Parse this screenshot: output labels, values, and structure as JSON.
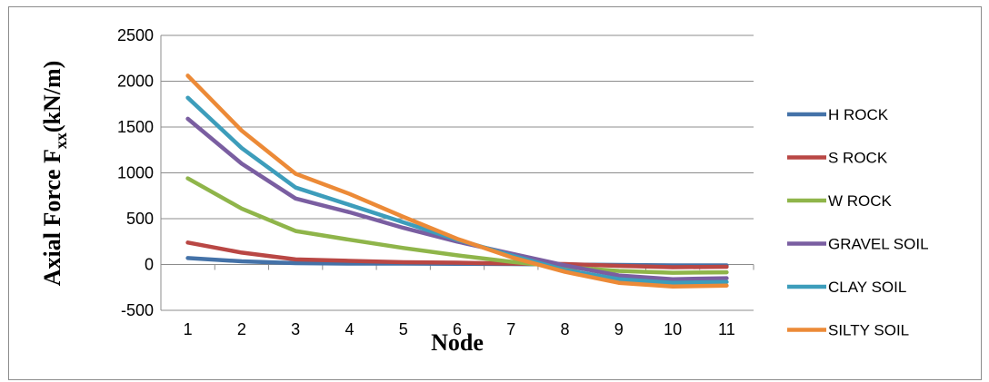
{
  "chart_data": {
    "type": "line",
    "title": "",
    "xlabel": "Node",
    "ylabel": {
      "main": "Axial Force F",
      "sub": "xx",
      "rest": "(kN/m)"
    },
    "categories": [
      "1",
      "2",
      "3",
      "4",
      "5",
      "6",
      "7",
      "8",
      "9",
      "10",
      "11"
    ],
    "ylim": [
      -500,
      2500
    ],
    "yticks": [
      -500,
      0,
      500,
      1000,
      1500,
      2000,
      2500
    ],
    "grid": true,
    "legend_position": "right",
    "series": [
      {
        "name": "H ROCK",
        "color": "#4472a8",
        "values": [
          70,
          35,
          15,
          10,
          10,
          8,
          5,
          0,
          -5,
          -10,
          -10
        ]
      },
      {
        "name": "S ROCK",
        "color": "#b94744",
        "values": [
          240,
          130,
          55,
          40,
          25,
          20,
          10,
          5,
          -15,
          -30,
          -25
        ]
      },
      {
        "name": "W ROCK",
        "color": "#8fb54a",
        "values": [
          940,
          610,
          365,
          270,
          180,
          100,
          30,
          -30,
          -70,
          -90,
          -85
        ]
      },
      {
        "name": "GRAVEL SOIL",
        "color": "#7a5ea1",
        "values": [
          1590,
          1100,
          720,
          570,
          400,
          250,
          120,
          -10,
          -120,
          -160,
          -150
        ]
      },
      {
        "name": "CLAY SOIL",
        "color": "#3d9dbb",
        "values": [
          1820,
          1270,
          840,
          650,
          460,
          270,
          100,
          -60,
          -160,
          -200,
          -190
        ]
      },
      {
        "name": "SILTY SOIL",
        "color": "#ec8a37",
        "values": [
          2060,
          1460,
          990,
          770,
          520,
          280,
          80,
          -80,
          -200,
          -240,
          -230
        ]
      }
    ]
  }
}
